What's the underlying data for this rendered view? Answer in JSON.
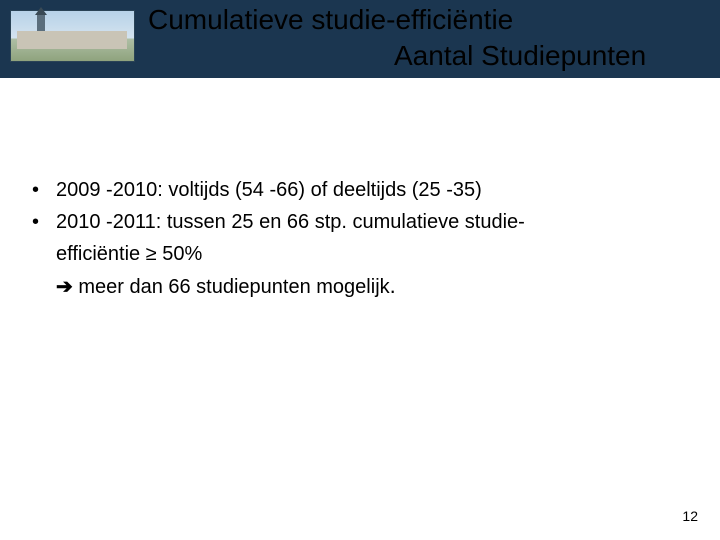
{
  "header": {
    "title_line1": "Cumulatieve studie-efficiëntie",
    "title_line2": "Aantal Studiepunten",
    "bg_color": "#1b3650"
  },
  "content": {
    "bullets": [
      {
        "marker": "•",
        "text": "2009 -2010: voltijds (54 -66) of deeltijds (25 -35)"
      },
      {
        "marker": "•",
        "text": "2010 -2011: tussen 25 en 66 stp. cumulatieve studie-"
      }
    ],
    "continuation": "efficiëntie ≥ 50%",
    "arrow_symbol": "➔",
    "arrow_text": " meer dan 66 studiepunten mogelijk",
    "final_period": "."
  },
  "footer": {
    "page_number": "12"
  },
  "colors": {
    "text": "#000000",
    "background": "#ffffff"
  },
  "typography": {
    "title_fontsize": 28,
    "body_fontsize": 20,
    "pagenum_fontsize": 14,
    "font_family": "Arial"
  }
}
